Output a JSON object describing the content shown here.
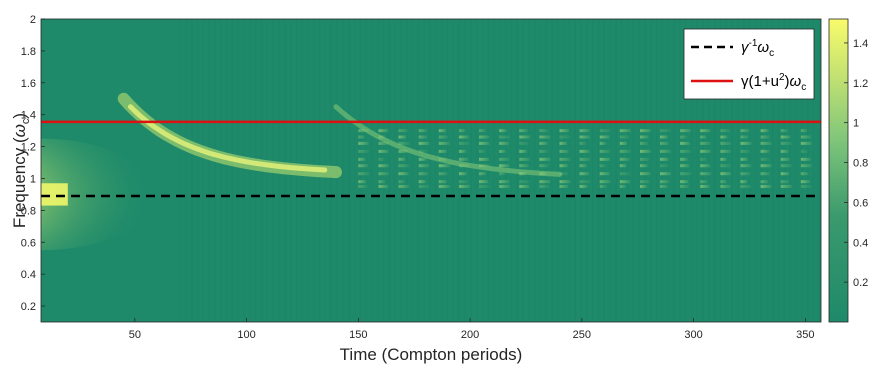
{
  "chart_data": {
    "type": "heatmap",
    "xlabel": "Time (Compton periods)",
    "ylabel_parts": {
      "prefix": "Frequency (",
      "symbol": "ω",
      "sub": "c",
      "suffix": ")"
    },
    "xlim": [
      8,
      357
    ],
    "ylim": [
      0.1,
      2
    ],
    "xticks": [
      50,
      100,
      150,
      200,
      250,
      300,
      350
    ],
    "yticks": [
      0.2,
      0.4,
      0.6,
      0.8,
      1,
      1.2,
      1.4,
      1.6,
      1.8,
      2
    ],
    "colorbar": {
      "range": [
        0,
        1.52
      ],
      "ticks": [
        0.2,
        0.4,
        0.6,
        0.8,
        1,
        1.2,
        1.4
      ]
    },
    "colors": {
      "low": "#1e8a6a",
      "mid": "#7fc57a",
      "high": "#f9fb6a"
    },
    "reference_lines": [
      {
        "label_parts": {
          "base": "γ",
          "sup": "-1",
          "sym": "ω",
          "sub": "c"
        },
        "y": 0.89,
        "color": "#000000",
        "style": "dashed"
      },
      {
        "label_parts": {
          "base": "γ(1+u",
          "sup": "2",
          "mid": ")",
          "sym": "ω",
          "sub": "c"
        },
        "y": 1.355,
        "color": "#dd1111",
        "style": "solid"
      }
    ],
    "grid": false,
    "legend": "top-right"
  }
}
